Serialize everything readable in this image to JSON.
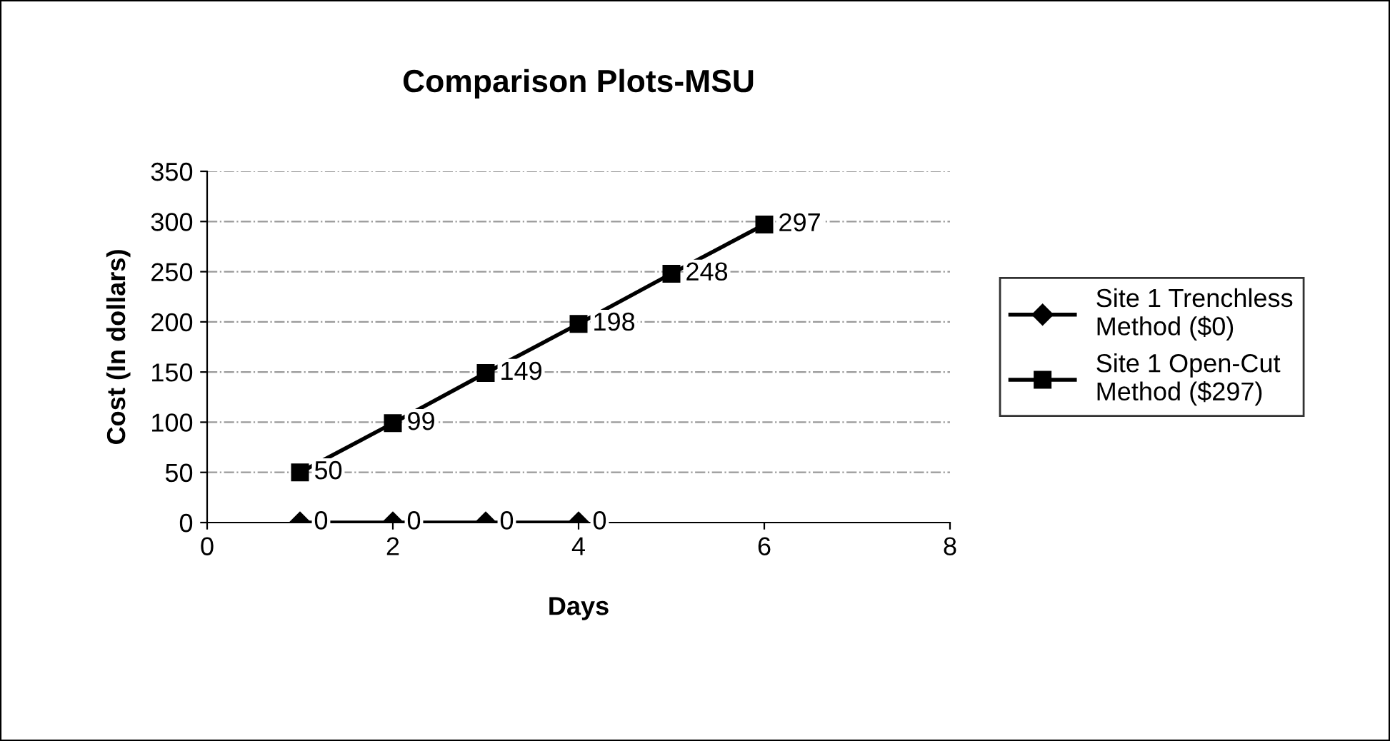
{
  "chart_data": {
    "type": "line",
    "title": "Comparison Plots-MSU",
    "xlabel": "Days",
    "ylabel": "Cost (In dollars)",
    "series": [
      {
        "name": "Site 1 Trenchless Method ($0)",
        "color": "#000000",
        "marker": "diamond",
        "x": [
          1,
          2,
          3,
          4
        ],
        "values": [
          0,
          0,
          0,
          0
        ]
      },
      {
        "name": "Site 1 Open-Cut Method ($297)",
        "color": "#000000",
        "marker": "square",
        "x": [
          1,
          2,
          3,
          4,
          5,
          6
        ],
        "values": [
          50,
          99,
          149,
          198,
          248,
          297
        ]
      }
    ],
    "xlim": [
      0,
      8
    ],
    "xticks": [
      0,
      2,
      4,
      6,
      8
    ],
    "ylim": [
      0,
      350
    ],
    "yticks": [
      0,
      50,
      100,
      150,
      200,
      250,
      300,
      350
    ],
    "grid": "y",
    "legend": "right",
    "data_labels": true,
    "line_style": "solid"
  }
}
